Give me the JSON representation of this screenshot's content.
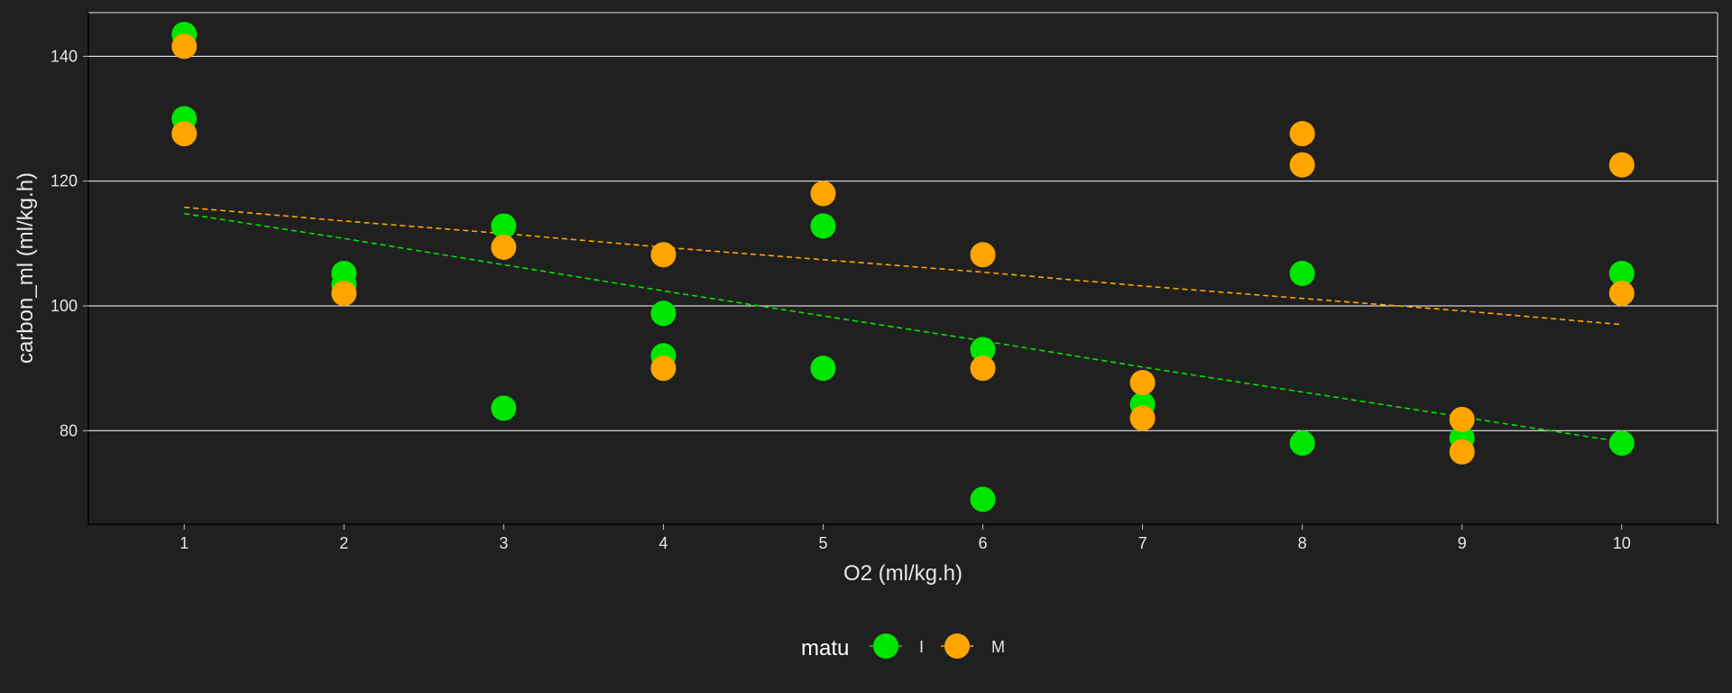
{
  "chart_data": {
    "type": "scatter",
    "title": "",
    "xlabel": "O2 (ml/kg.h)",
    "ylabel": "carbon_ml (ml/kg.h)",
    "xlim": [
      0.4,
      10.6
    ],
    "ylim": [
      65,
      147
    ],
    "x_ticks": [
      1,
      2,
      3,
      4,
      5,
      6,
      7,
      8,
      9,
      10
    ],
    "y_ticks": [
      80,
      100,
      120,
      140
    ],
    "grid": "horizontal major lines",
    "background": "#202020",
    "legend": {
      "title": "matu",
      "position": "bottom",
      "entries": [
        "I",
        "M"
      ]
    },
    "series": [
      {
        "name": "I",
        "color": "#00e600",
        "points": [
          [
            1,
            143.5
          ],
          [
            1,
            130
          ],
          [
            2,
            105.2
          ],
          [
            2,
            103.4
          ],
          [
            3,
            112.8
          ],
          [
            3,
            83.6
          ],
          [
            4,
            98.8
          ],
          [
            4,
            92
          ],
          [
            5,
            112.8
          ],
          [
            5,
            90
          ],
          [
            6,
            93
          ],
          [
            6,
            69
          ],
          [
            7,
            84.2
          ],
          [
            8,
            105.2
          ],
          [
            8,
            78
          ],
          [
            9,
            78.8
          ],
          [
            10,
            105.2
          ],
          [
            10,
            78
          ]
        ],
        "trend": [
          [
            1,
            114.8
          ],
          [
            2,
            110.8
          ],
          [
            3,
            106.6
          ],
          [
            4,
            102.4
          ],
          [
            5,
            98.4
          ],
          [
            6,
            94.4
          ],
          [
            7,
            90.2
          ],
          [
            8,
            86.2
          ],
          [
            9,
            82.2
          ],
          [
            10,
            78.2
          ]
        ]
      },
      {
        "name": "M",
        "color": "#ffa500",
        "points": [
          [
            1,
            141.6
          ],
          [
            1,
            127.6
          ],
          [
            2,
            102
          ],
          [
            3,
            109.4
          ],
          [
            4,
            108.2
          ],
          [
            4,
            90
          ],
          [
            5,
            118
          ],
          [
            6,
            108.2
          ],
          [
            6,
            90
          ],
          [
            7,
            87.7
          ],
          [
            7,
            82
          ],
          [
            8,
            127.6
          ],
          [
            8,
            122.6
          ],
          [
            9,
            81.8
          ],
          [
            9,
            76.6
          ],
          [
            10,
            122.6
          ],
          [
            10,
            102
          ]
        ],
        "trend": [
          [
            1,
            115.8
          ],
          [
            2,
            113.6
          ],
          [
            3,
            111.6
          ],
          [
            4,
            109.4
          ],
          [
            5,
            107.4
          ],
          [
            6,
            105.4
          ],
          [
            7,
            103.2
          ],
          [
            8,
            101.2
          ],
          [
            9,
            99.2
          ],
          [
            10,
            97
          ]
        ]
      }
    ]
  }
}
